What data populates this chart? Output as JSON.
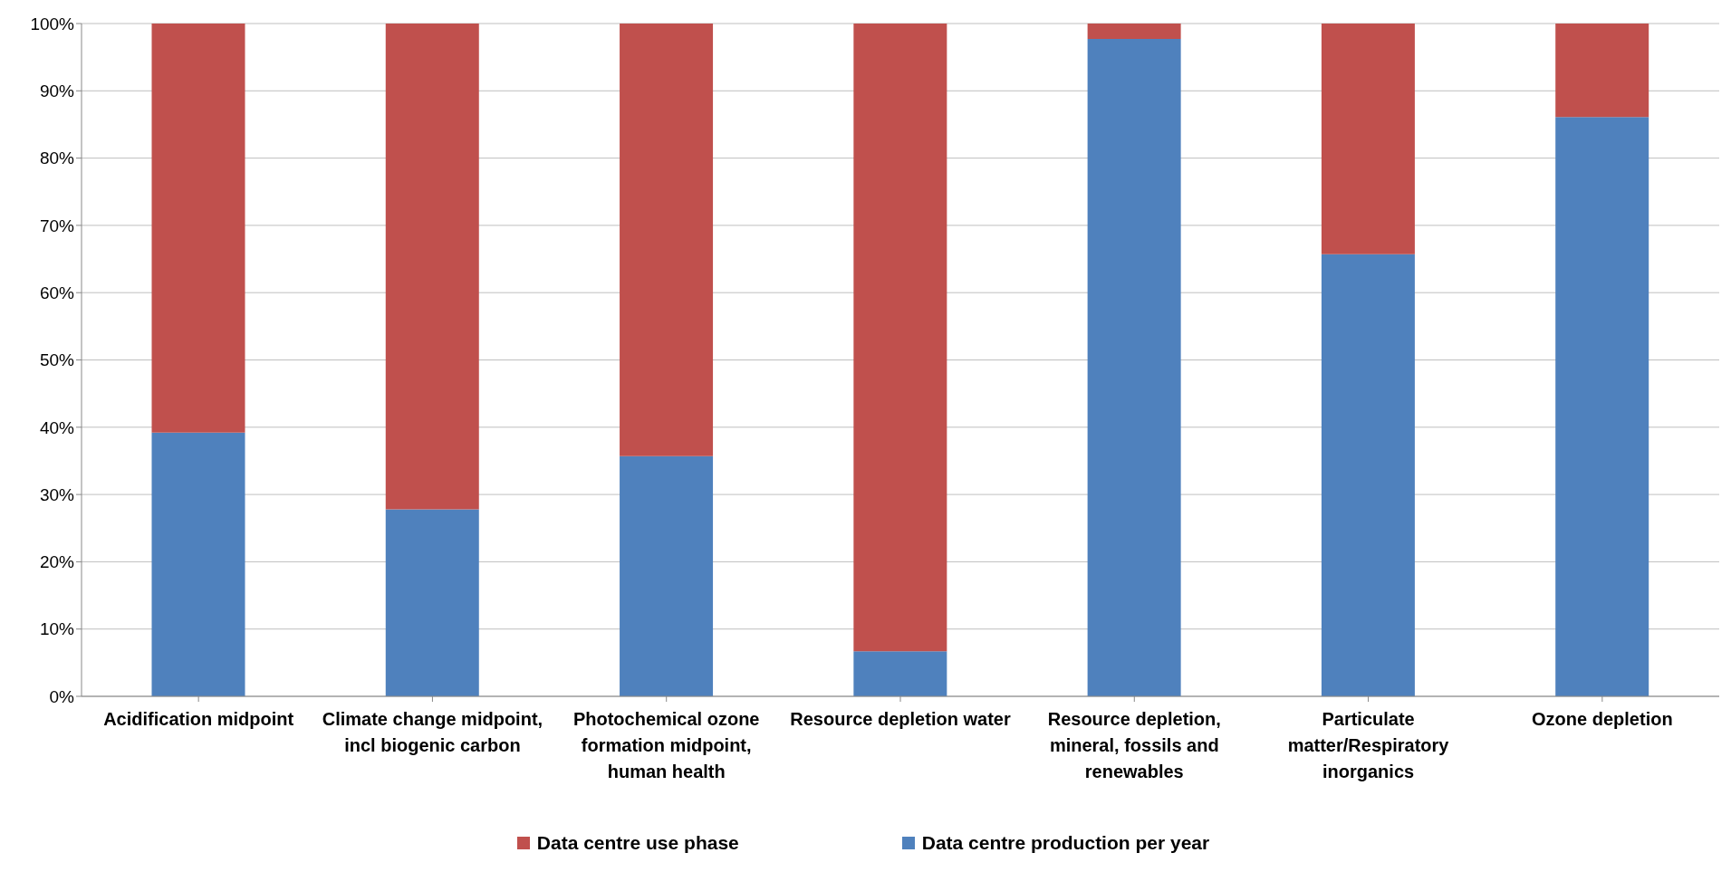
{
  "chart_data": {
    "type": "bar",
    "stacked": true,
    "categories": [
      "Acidification midpoint",
      "Climate change midpoint, incl biogenic carbon",
      "Photochemical ozone formation midpoint, human health",
      "Resource depletion water",
      "Resource depletion, mineral, fossils and renewables",
      "Particulate matter/Respiratory inorganics",
      "Ozone depletion"
    ],
    "series": [
      {
        "name": "Data centre production per year",
        "color": "#4f81bd",
        "values": [
          39.2,
          27.8,
          35.7,
          6.7,
          97.7,
          65.7,
          86.1
        ]
      },
      {
        "name": "Data centre use phase",
        "color": "#c0504d",
        "values": [
          60.8,
          72.2,
          64.3,
          93.3,
          2.3,
          34.3,
          13.9
        ]
      }
    ],
    "ylim": [
      0,
      100
    ],
    "yticks": [
      {
        "value": 0,
        "label": "0%"
      },
      {
        "value": 10,
        "label": "10%"
      },
      {
        "value": 20,
        "label": "20%"
      },
      {
        "value": 30,
        "label": "30%"
      },
      {
        "value": 40,
        "label": "40%"
      },
      {
        "value": 50,
        "label": "50%"
      },
      {
        "value": 60,
        "label": "60%"
      },
      {
        "value": 70,
        "label": "70%"
      },
      {
        "value": 80,
        "label": "80%"
      },
      {
        "value": 90,
        "label": "90%"
      },
      {
        "value": 100,
        "label": "100%"
      }
    ],
    "grid": "y",
    "legend": "bottom"
  }
}
